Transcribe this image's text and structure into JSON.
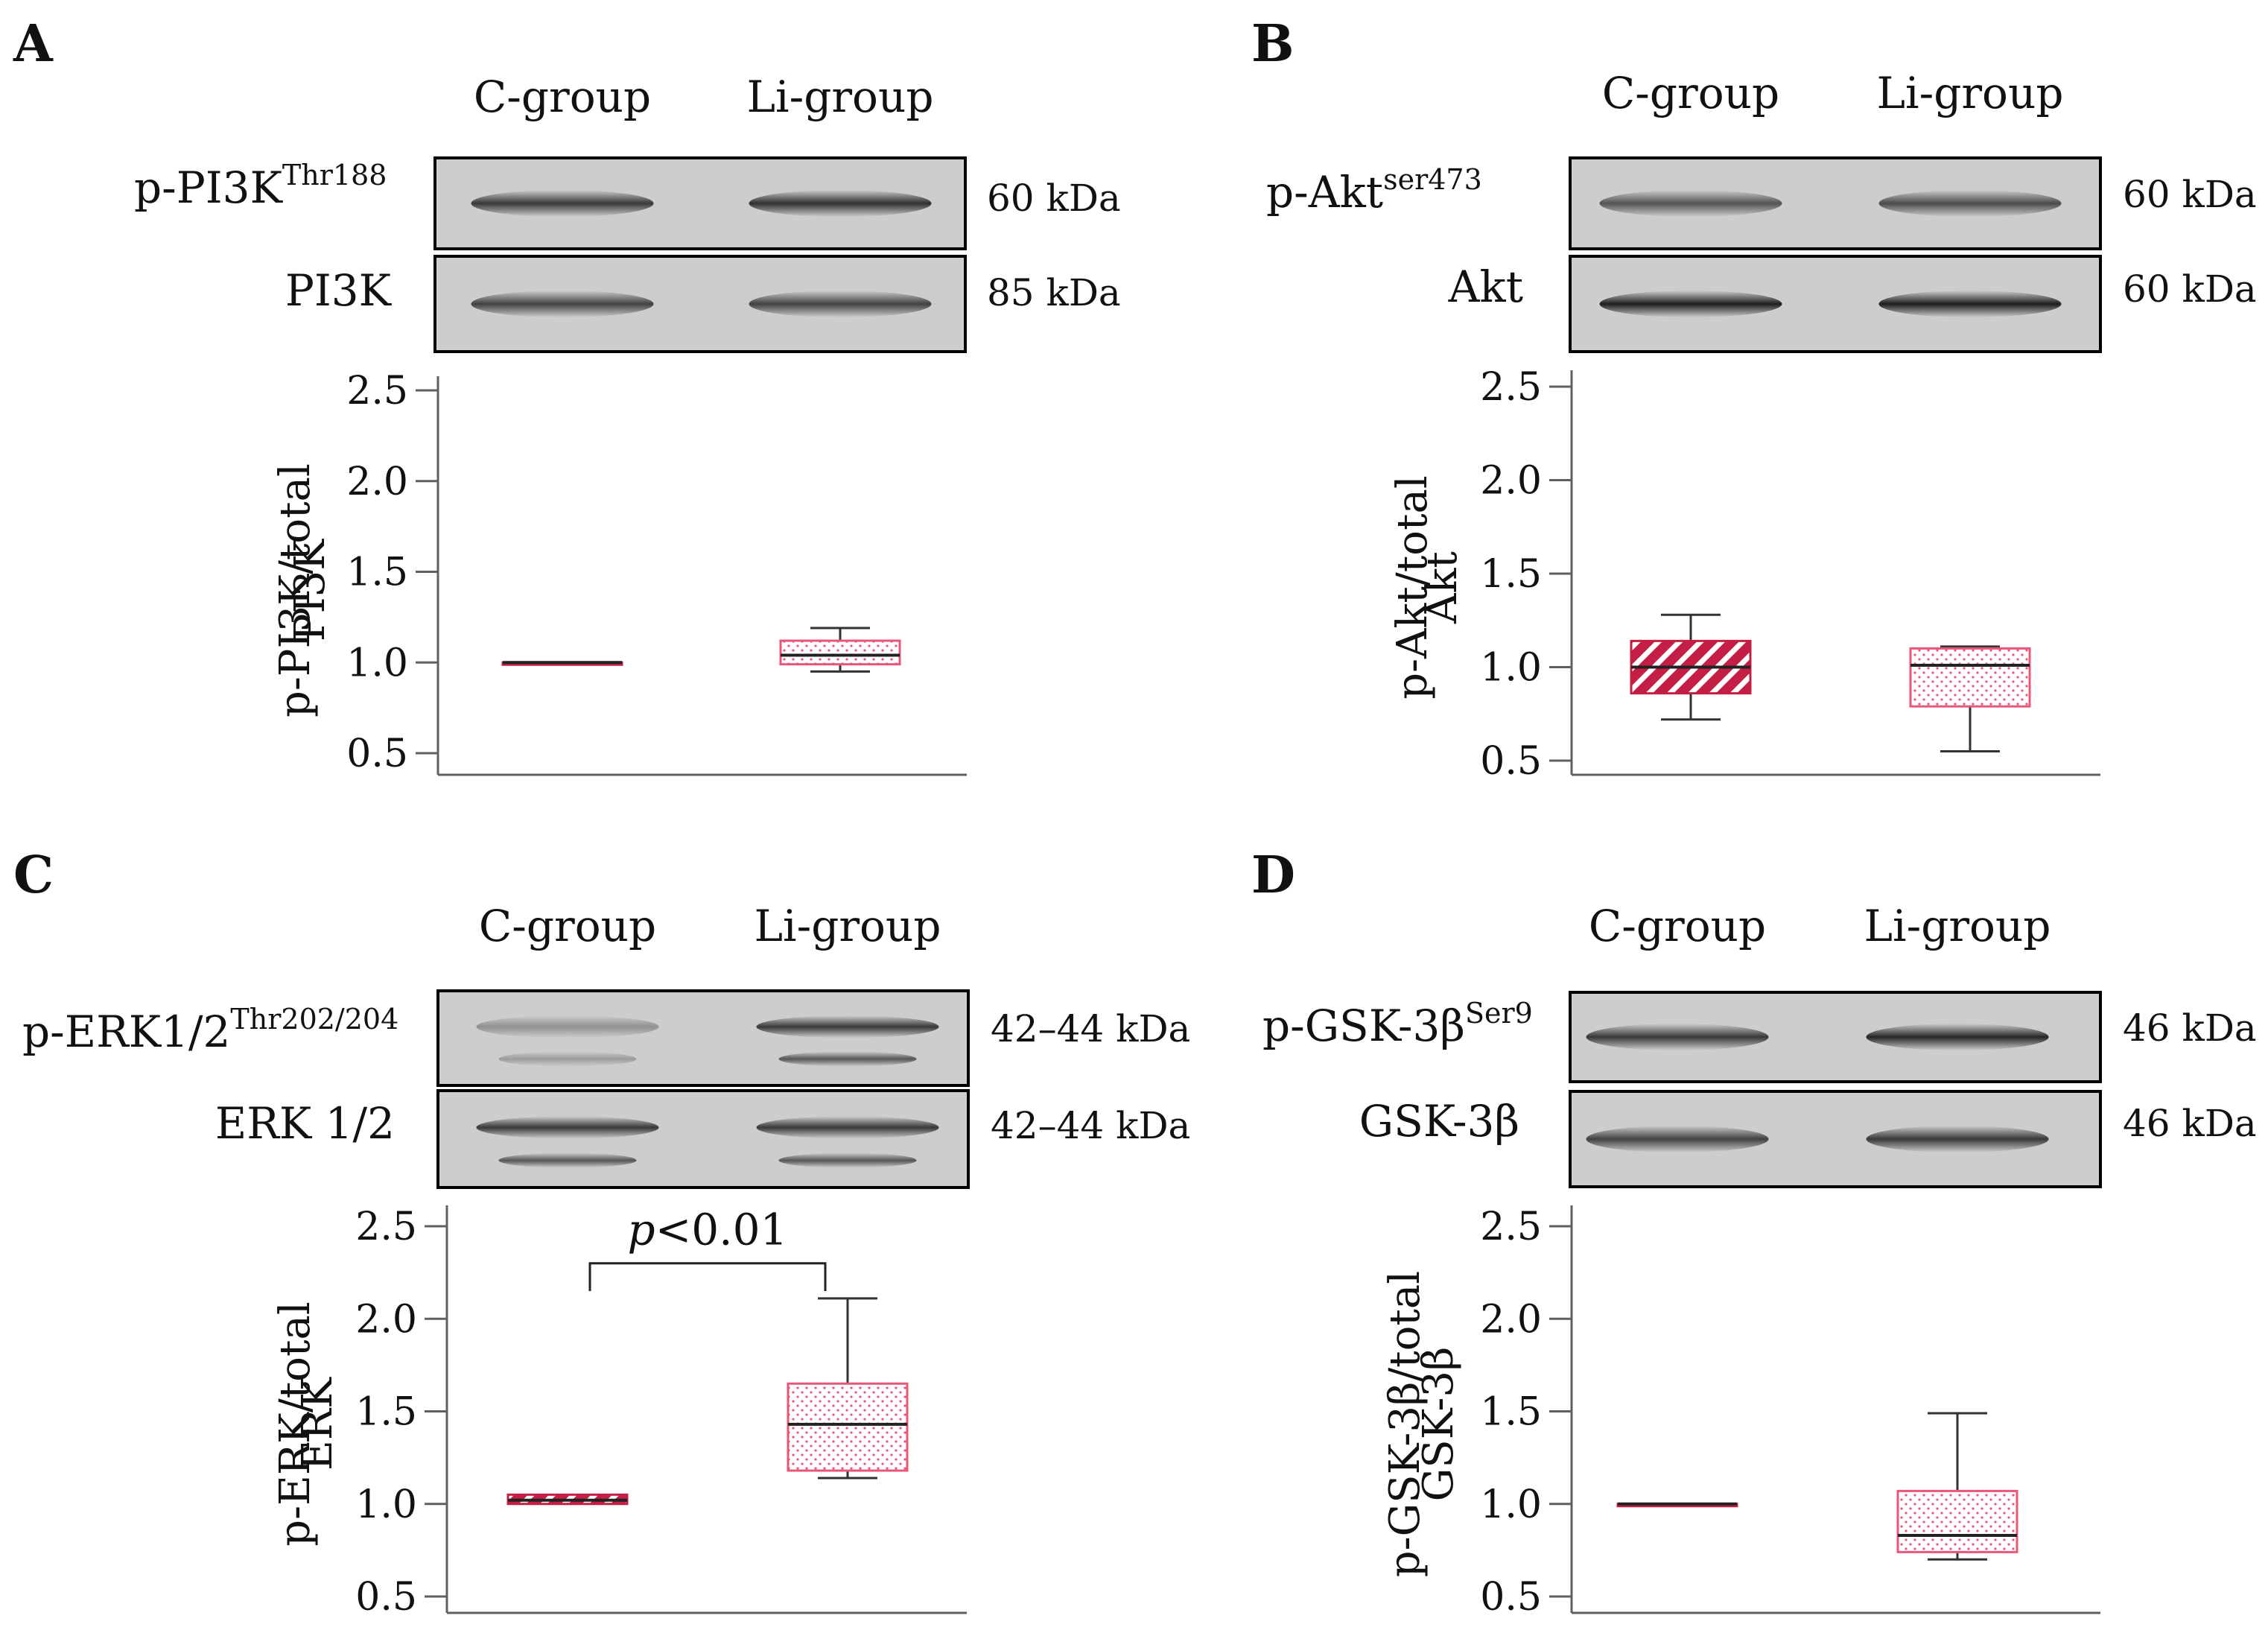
{
  "figure": {
    "colors": {
      "c_group": "#c41e45",
      "li_group": "#e8577a",
      "axis": "#606060",
      "blot_background": "#cdcdcd",
      "band": "#1e1e1e",
      "text": "#111111"
    }
  },
  "chart_data": [
    {
      "panel": "A",
      "type": "boxplot",
      "blot": {
        "lane_labels": [
          "C-group",
          "Li-group"
        ],
        "rows": [
          {
            "label": "p-PI3K",
            "superscript": "Thr188",
            "weight": "60 kDa",
            "intensity": [
              0.85,
              0.9
            ]
          },
          {
            "label": "PI3K",
            "superscript": "",
            "weight": "85 kDa",
            "intensity": [
              0.8,
              0.8
            ]
          }
        ]
      },
      "ylabel": [
        "p-PI3K/total",
        "PI3K"
      ],
      "yticks": [
        "2.5",
        "2.0",
        "1.5",
        "1.0",
        "0.5"
      ],
      "ylim": [
        0.4,
        2.6
      ],
      "categories": [
        "C-group",
        "Li-group"
      ],
      "boxes": [
        {
          "group": "C-group",
          "min": 1.0,
          "q1": 1.0,
          "median": 1.0,
          "q3": 1.0,
          "max": 1.0,
          "pattern": "hatch"
        },
        {
          "group": "Li-group",
          "min": 0.95,
          "q1": 0.99,
          "median": 1.04,
          "q3": 1.12,
          "max": 1.19,
          "pattern": "dots"
        }
      ],
      "annotation": null
    },
    {
      "panel": "B",
      "type": "boxplot",
      "blot": {
        "lane_labels": [
          "C-group",
          "Li-group"
        ],
        "rows": [
          {
            "label": "p-Akt",
            "superscript": "ser473",
            "weight": "60 kDa",
            "intensity": [
              0.7,
              0.75
            ]
          },
          {
            "label": "Akt",
            "superscript": "",
            "weight": "60 kDa",
            "intensity": [
              1.0,
              1.0
            ]
          }
        ]
      },
      "ylabel": [
        "p-Akt/total",
        "Akt"
      ],
      "yticks": [
        "2.5",
        "2.0",
        "1.5",
        "1.0",
        "0.5"
      ],
      "ylim": [
        0.4,
        2.6
      ],
      "categories": [
        "C-group",
        "Li-group"
      ],
      "boxes": [
        {
          "group": "C-group",
          "min": 0.72,
          "q1": 0.86,
          "median": 1.0,
          "q3": 1.14,
          "max": 1.28,
          "pattern": "hatch"
        },
        {
          "group": "Li-group",
          "min": 0.55,
          "q1": 0.79,
          "median": 1.01,
          "q3": 1.1,
          "max": 1.11,
          "pattern": "dots"
        }
      ],
      "annotation": null
    },
    {
      "panel": "C",
      "type": "boxplot",
      "blot": {
        "lane_labels": [
          "C-group",
          "Li-group"
        ],
        "rows": [
          {
            "label": "p-ERK1/2",
            "superscript": "Thr202/204",
            "weight": "42–44 kDa",
            "intensity": [
              0.35,
              0.85
            ],
            "doublet": true
          },
          {
            "label": "ERK  1/2",
            "superscript": "",
            "weight": "42–44 kDa",
            "intensity": [
              0.85,
              0.85
            ],
            "doublet": true
          }
        ]
      },
      "ylabel": [
        "p-ERK/total",
        "ERK"
      ],
      "yticks": [
        "2.5",
        "2.0",
        "1.5",
        "1.0",
        "0.5"
      ],
      "ylim": [
        0.4,
        2.6
      ],
      "categories": [
        "C-group",
        "Li-group"
      ],
      "boxes": [
        {
          "group": "C-group",
          "min": 1.0,
          "q1": 1.0,
          "median": 1.02,
          "q3": 1.05,
          "max": 1.05,
          "pattern": "hatch"
        },
        {
          "group": "Li-group",
          "min": 1.14,
          "q1": 1.18,
          "median": 1.43,
          "q3": 1.65,
          "max": 2.11,
          "pattern": "dots"
        }
      ],
      "annotation": {
        "italic": "p",
        "text": "<0.01",
        "bracket_level": 2.3,
        "bracket_drop": 2.15
      }
    },
    {
      "panel": "D",
      "type": "boxplot",
      "blot": {
        "lane_labels": [
          "C-group",
          "Li-group"
        ],
        "rows": [
          {
            "label": "p-GSK-3β",
            "superscript": "Ser9",
            "weight": "46 kDa",
            "intensity": [
              0.85,
              0.95
            ]
          },
          {
            "label": "GSK-3β",
            "superscript": "",
            "weight": "46 kDa",
            "intensity": [
              0.8,
              0.85
            ]
          }
        ]
      },
      "ylabel": [
        "p-GSK-3β/total",
        "GSK-3β"
      ],
      "yticks": [
        "2.5",
        "2.0",
        "1.5",
        "1.0",
        "0.5"
      ],
      "ylim": [
        0.4,
        2.6
      ],
      "categories": [
        "C-group",
        "Li-group"
      ],
      "boxes": [
        {
          "group": "C-group",
          "min": 1.0,
          "q1": 1.0,
          "median": 1.0,
          "q3": 1.0,
          "max": 1.0,
          "pattern": "hatch"
        },
        {
          "group": "Li-group",
          "min": 0.7,
          "q1": 0.74,
          "median": 0.83,
          "q3": 1.07,
          "max": 1.49,
          "pattern": "dots"
        }
      ],
      "annotation": null
    }
  ]
}
